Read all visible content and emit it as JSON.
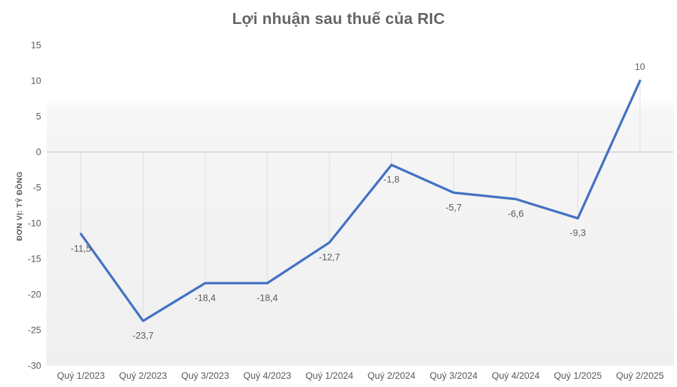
{
  "title": "Lợi nhuận sau thuế của RIC",
  "y_axis_title": "ĐƠN VỊ: TỶ ĐỒNG",
  "colors": {
    "line": "#4472c4",
    "title_text": "#666666",
    "axis_text": "#595959",
    "data_label_text": "#595959",
    "zero_line": "#bfbfbf",
    "drop_line": "#dcdcdc",
    "plot_bg_top": "#ffffff",
    "plot_bg_bottom": "#efefef"
  },
  "chart_data": {
    "type": "line",
    "title": "Lợi nhuận sau thuế của RIC",
    "ylabel": "ĐƠN VỊ: TỶ ĐỒNG",
    "xlabel": "",
    "categories": [
      "Quý 1/2023",
      "Quý 2/2023",
      "Quý 3/2023",
      "Quý 4/2023",
      "Quý 1/2024",
      "Quý 2/2024",
      "Quý 3/2024",
      "Quý 4/2024",
      "Quý 1/2025",
      "Quý 2/2025"
    ],
    "values": [
      -11.5,
      -23.7,
      -18.4,
      -18.4,
      -12.7,
      -1.8,
      -5.7,
      -6.6,
      -9.3,
      10
    ],
    "value_labels": [
      "-11,5",
      "-23,7",
      "-18,4",
      "-18,4",
      "-12,7",
      "-1,8",
      "-5,7",
      "-6,6",
      "-9,3",
      "10"
    ],
    "yticks": [
      15,
      10,
      5,
      0,
      -5,
      -10,
      -15,
      -20,
      -25,
      -30
    ],
    "ytick_labels": [
      "15",
      "10",
      "5",
      "0",
      "-5",
      "-10",
      "-15",
      "-20",
      "-25",
      "-30"
    ],
    "ylim": [
      -30,
      15
    ],
    "grid": "zero-line-and-point-drop-lines",
    "legend": "none"
  }
}
